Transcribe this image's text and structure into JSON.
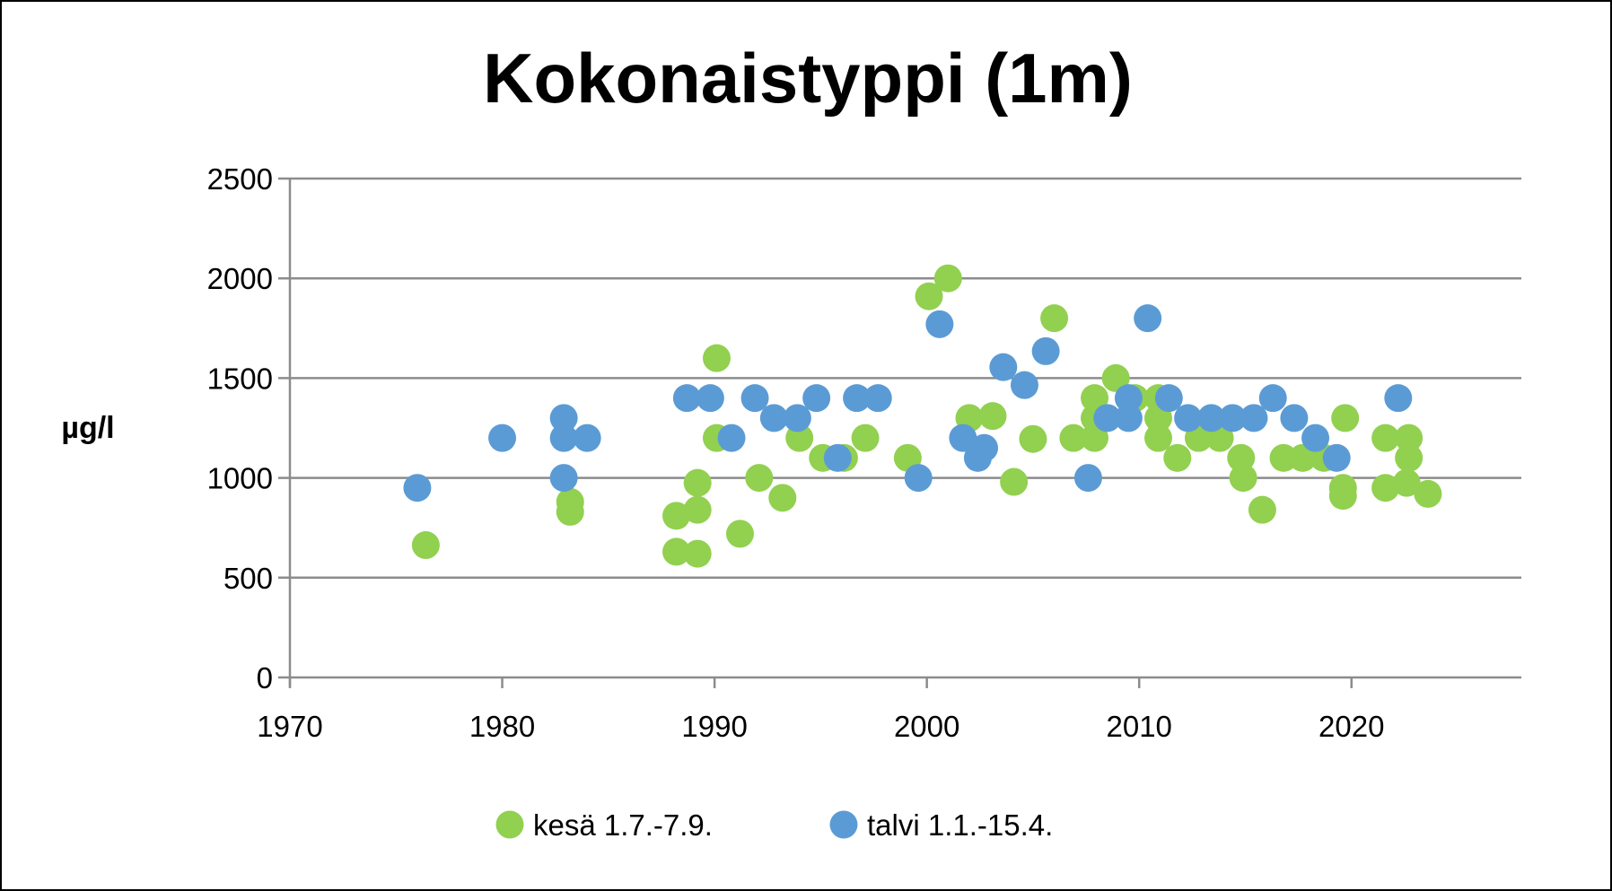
{
  "chart_data": {
    "type": "scatter",
    "title": "Kokonaistyppi (1m)",
    "xlabel": "",
    "ylabel": "µg/l",
    "xlim": [
      1970,
      2028
    ],
    "ylim": [
      0,
      2500
    ],
    "x_ticks": [
      1970,
      1980,
      1990,
      2000,
      2010,
      2020
    ],
    "y_ticks": [
      0,
      500,
      1000,
      1500,
      2000,
      2500
    ],
    "grid": "horizontal",
    "legend_position": "bottom",
    "series": [
      {
        "name": "kesä 1.7.-7.9.",
        "color": "#92d050",
        "points": [
          [
            1976.4,
            663
          ],
          [
            1983.2,
            880
          ],
          [
            1983.2,
            830
          ],
          [
            1988.2,
            810
          ],
          [
            1988.2,
            630
          ],
          [
            1989.2,
            840
          ],
          [
            1989.2,
            975
          ],
          [
            1989.2,
            620
          ],
          [
            1990.1,
            1600
          ],
          [
            1990.1,
            1200
          ],
          [
            1991.2,
            720
          ],
          [
            1992.1,
            1000
          ],
          [
            1993.2,
            900
          ],
          [
            1994.0,
            1200
          ],
          [
            1995.1,
            1100
          ],
          [
            1996.1,
            1100
          ],
          [
            1997.1,
            1200
          ],
          [
            1999.1,
            1100
          ],
          [
            2000.1,
            1910
          ],
          [
            2001.0,
            2000
          ],
          [
            2002.0,
            1300
          ],
          [
            2003.1,
            1310
          ],
          [
            2004.1,
            980
          ],
          [
            2005.0,
            1195
          ],
          [
            2006.0,
            1800
          ],
          [
            2006.9,
            1200
          ],
          [
            2007.9,
            1200
          ],
          [
            2007.9,
            1400
          ],
          [
            2007.9,
            1300
          ],
          [
            2008.9,
            1500
          ],
          [
            2009.8,
            1400
          ],
          [
            2010.9,
            1200
          ],
          [
            2010.9,
            1400
          ],
          [
            2010.9,
            1300
          ],
          [
            2011.8,
            1100
          ],
          [
            2012.8,
            1200
          ],
          [
            2013.8,
            1200
          ],
          [
            2014.8,
            1100
          ],
          [
            2014.9,
            1000
          ],
          [
            2015.8,
            840
          ],
          [
            2016.8,
            1100
          ],
          [
            2017.7,
            1100
          ],
          [
            2018.7,
            1100
          ],
          [
            2019.6,
            950
          ],
          [
            2019.6,
            910
          ],
          [
            2019.7,
            1300
          ],
          [
            2021.6,
            950
          ],
          [
            2021.6,
            1200
          ],
          [
            2022.6,
            975
          ],
          [
            2022.7,
            1100
          ],
          [
            2022.7,
            1200
          ],
          [
            2023.6,
            920
          ]
        ]
      },
      {
        "name": "talvi 1.1.-15.4.",
        "color": "#5b9bd5",
        "points": [
          [
            1976.0,
            950
          ],
          [
            1980.0,
            1200
          ],
          [
            1982.9,
            1300
          ],
          [
            1982.9,
            1200
          ],
          [
            1982.9,
            1000
          ],
          [
            1984.0,
            1200
          ],
          [
            1988.7,
            1400
          ],
          [
            1989.8,
            1400
          ],
          [
            1990.8,
            1200
          ],
          [
            1991.9,
            1400
          ],
          [
            1992.8,
            1300
          ],
          [
            1993.9,
            1300
          ],
          [
            1994.8,
            1400
          ],
          [
            1995.8,
            1100
          ],
          [
            1996.7,
            1400
          ],
          [
            1997.7,
            1400
          ],
          [
            1999.6,
            1000
          ],
          [
            2000.6,
            1770
          ],
          [
            2001.7,
            1200
          ],
          [
            2002.7,
            1150
          ],
          [
            2002.4,
            1100
          ],
          [
            2003.6,
            1555
          ],
          [
            2004.6,
            1465
          ],
          [
            2005.6,
            1635
          ],
          [
            2007.6,
            1000
          ],
          [
            2008.5,
            1300
          ],
          [
            2009.5,
            1400
          ],
          [
            2009.5,
            1300
          ],
          [
            2010.4,
            1800
          ],
          [
            2011.4,
            1400
          ],
          [
            2012.3,
            1300
          ],
          [
            2013.4,
            1300
          ],
          [
            2014.4,
            1300
          ],
          [
            2015.4,
            1300
          ],
          [
            2016.3,
            1400
          ],
          [
            2017.3,
            1300
          ],
          [
            2018.3,
            1200
          ],
          [
            2019.3,
            1100
          ],
          [
            2022.2,
            1400
          ]
        ]
      }
    ]
  }
}
